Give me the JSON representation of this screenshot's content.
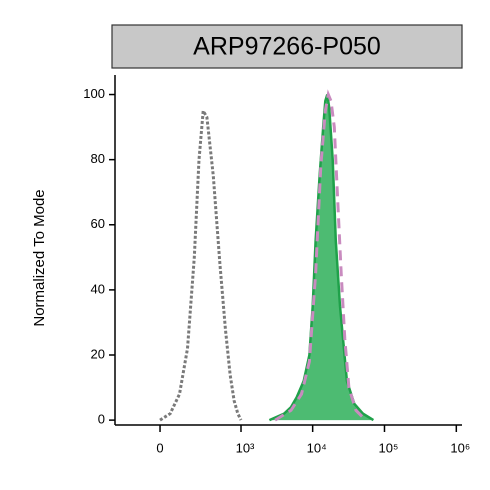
{
  "chart_data": {
    "type": "line",
    "title": "ARP97266-P050",
    "y_label": "Normalized To Mode",
    "xscale": "biexponential",
    "xlim": [
      -300,
      1200000
    ],
    "xticks": [
      0,
      {
        "value": 1000,
        "label": "10³"
      },
      {
        "value": 10000,
        "label": "10⁴"
      },
      {
        "value": 100000,
        "label": "10⁵"
      },
      {
        "value": 1000000,
        "label": "10⁶"
      }
    ],
    "ylim": [
      -1.5,
      106
    ],
    "yticks": [
      0,
      20,
      40,
      60,
      80,
      100
    ],
    "series": [
      {
        "color": "#7a7a7a",
        "style": "dotted",
        "x": [
          0,
          50,
          100,
          150,
          200,
          240,
          280,
          320,
          400,
          500,
          600,
          700,
          800,
          900,
          1000
        ],
        "values": [
          0,
          2,
          8,
          22,
          50,
          80,
          95,
          93,
          75,
          48,
          28,
          14,
          6,
          2,
          0
        ]
      },
      {
        "color": "#1fa14a",
        "fill": "#4dbb72",
        "style": "solid",
        "x": [
          2500,
          4000,
          5000,
          6000,
          7500,
          9000,
          10000,
          11000,
          12500,
          14000,
          15000,
          16000,
          17000,
          19000,
          21000,
          24000,
          30000,
          38000,
          50000,
          70000
        ],
        "values": [
          0,
          2,
          4,
          7,
          12,
          20,
          35,
          55,
          75,
          90,
          98,
          100,
          96,
          80,
          55,
          35,
          12,
          5,
          2,
          0
        ]
      },
      {
        "color": "#c98bbf",
        "style": "dashed",
        "x": [
          3000,
          5000,
          7000,
          9000,
          11000,
          13000,
          15000,
          16500,
          18000,
          20000,
          22000,
          25000,
          28000,
          32000,
          40000,
          55000
        ],
        "values": [
          0,
          3,
          8,
          18,
          45,
          78,
          95,
          100,
          98,
          90,
          70,
          45,
          25,
          10,
          3,
          0
        ]
      }
    ]
  }
}
